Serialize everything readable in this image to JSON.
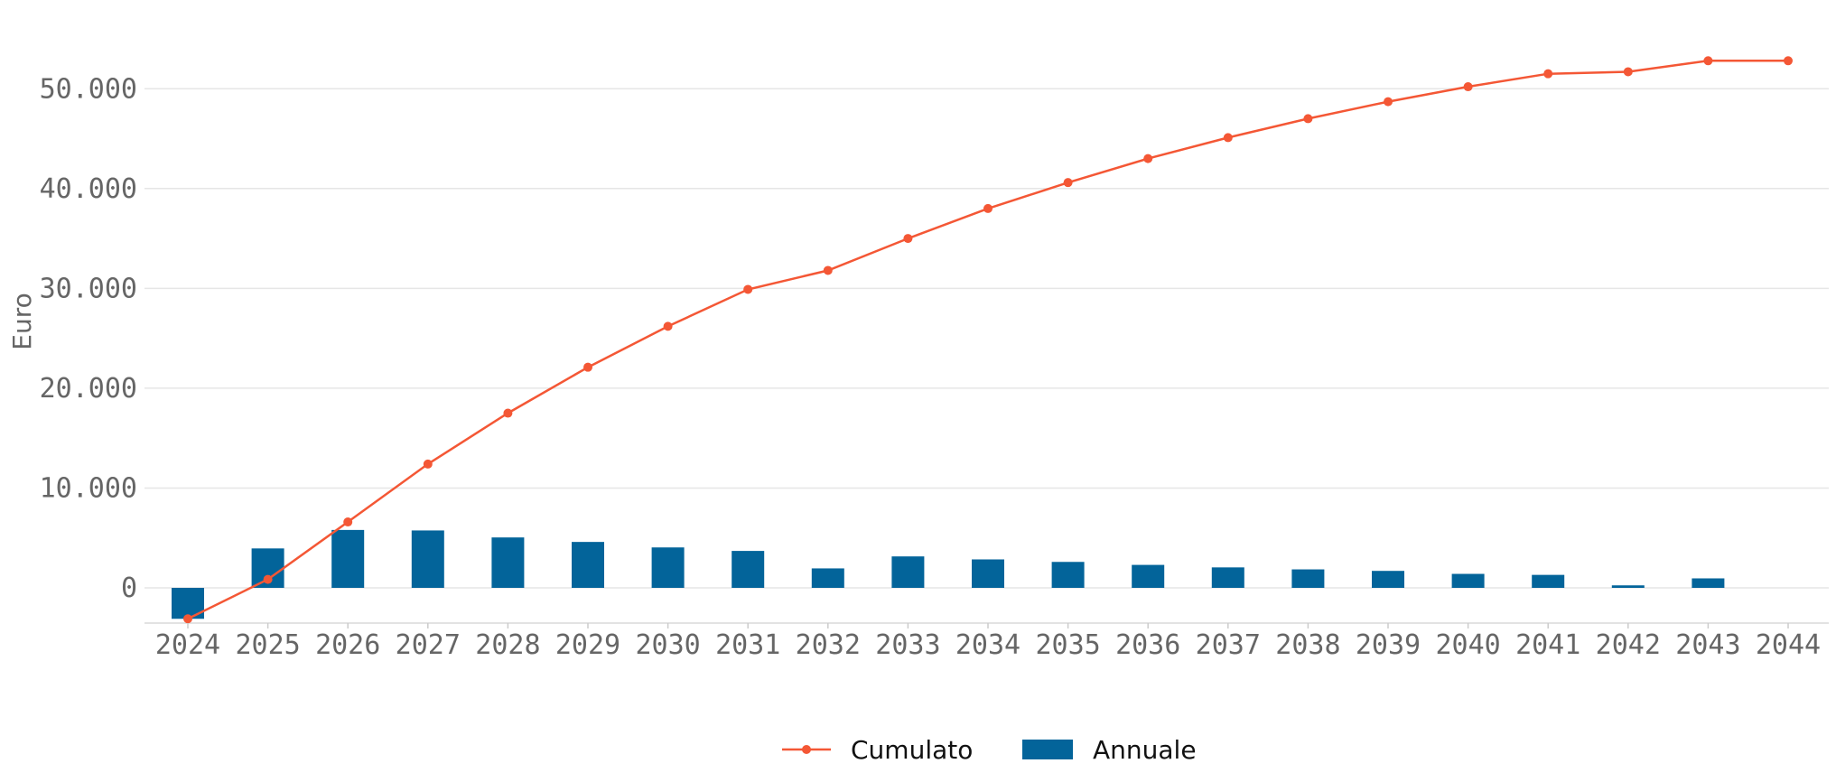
{
  "chart_data": {
    "type": "bar",
    "title": "",
    "xlabel": "",
    "ylabel": "Euro",
    "categories": [
      "2024",
      "2025",
      "2026",
      "2027",
      "2028",
      "2029",
      "2030",
      "2031",
      "2032",
      "2033",
      "2034",
      "2035",
      "2036",
      "2037",
      "2038",
      "2039",
      "2040",
      "2041",
      "2042",
      "2043",
      "2044"
    ],
    "series": [
      {
        "name": "Annuale",
        "type": "bar",
        "color": "#03649A",
        "values": [
          -3100,
          3950,
          5800,
          5750,
          5050,
          4600,
          4050,
          3700,
          1950,
          3150,
          2850,
          2600,
          2300,
          2050,
          1850,
          1700,
          1400,
          1300,
          250,
          950,
          0
        ]
      },
      {
        "name": "Cumulato",
        "type": "line",
        "color": "#F45735",
        "marker": "circle",
        "values": [
          -3100,
          850,
          6600,
          12400,
          17500,
          22100,
          26200,
          29900,
          31800,
          35000,
          38000,
          40600,
          43000,
          45100,
          47000,
          48700,
          50200,
          51500,
          51700,
          52800,
          52800
        ]
      }
    ],
    "yticks": [
      0,
      10000,
      20000,
      30000,
      40000,
      50000
    ],
    "ytick_labels": [
      "0",
      "10.000",
      "20.000",
      "30.000",
      "40.000",
      "50.000"
    ],
    "ylim": [
      -3500,
      57000
    ],
    "grid": "horizontal",
    "legend": {
      "placement": "bottom-center",
      "entries": [
        "Cumulato",
        "Annuale"
      ]
    }
  }
}
